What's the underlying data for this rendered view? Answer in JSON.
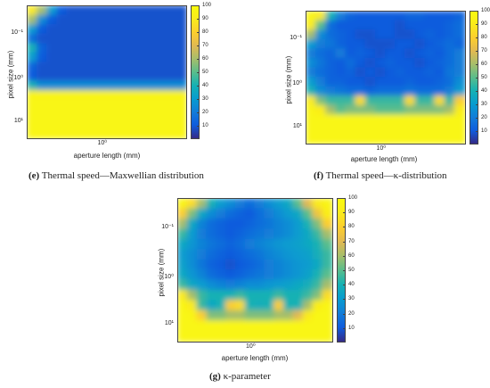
{
  "chart_data": [
    {
      "type": "heatmap",
      "caption_label": "(e)",
      "caption_text": "Thermal speed—Maxwellian distribution",
      "xlabel": "aperture length (mm)",
      "ylabel": "pixel size (mm)",
      "x_tick_labels": [
        "10⁰"
      ],
      "y_tick_labels": [
        "10⁻¹",
        "10⁰",
        "10¹"
      ],
      "colorbar_ticks": [
        "100",
        "90",
        "80",
        "70",
        "60",
        "50",
        "40",
        "30",
        "20",
        "10"
      ],
      "colorbar_range": [
        0,
        100
      ],
      "grid_rows": 14,
      "grid_cols": 16,
      "values": [
        [
          90,
          60,
          30,
          10,
          8,
          8,
          8,
          8,
          8,
          8,
          8,
          8,
          8,
          8,
          8,
          8
        ],
        [
          60,
          25,
          10,
          8,
          8,
          8,
          8,
          8,
          8,
          8,
          8,
          8,
          8,
          8,
          8,
          8
        ],
        [
          30,
          10,
          8,
          8,
          8,
          8,
          8,
          8,
          8,
          8,
          8,
          8,
          8,
          8,
          8,
          8
        ],
        [
          15,
          8,
          8,
          8,
          8,
          8,
          8,
          8,
          8,
          8,
          8,
          8,
          8,
          8,
          8,
          8
        ],
        [
          40,
          12,
          8,
          8,
          8,
          8,
          8,
          8,
          8,
          8,
          8,
          8,
          8,
          8,
          8,
          8
        ],
        [
          30,
          10,
          8,
          8,
          8,
          8,
          8,
          8,
          8,
          8,
          8,
          8,
          8,
          8,
          8,
          8
        ],
        [
          12,
          8,
          8,
          8,
          8,
          8,
          8,
          8,
          8,
          8,
          8,
          8,
          8,
          8,
          8,
          8
        ],
        [
          10,
          8,
          8,
          8,
          8,
          8,
          8,
          8,
          8,
          8,
          8,
          8,
          8,
          8,
          8,
          8
        ],
        [
          40,
          25,
          25,
          25,
          25,
          25,
          25,
          25,
          25,
          25,
          25,
          25,
          25,
          25,
          25,
          25
        ],
        [
          96,
          96,
          96,
          96,
          96,
          96,
          96,
          96,
          96,
          96,
          96,
          96,
          96,
          96,
          96,
          96
        ],
        [
          97,
          97,
          97,
          97,
          97,
          97,
          97,
          97,
          97,
          97,
          97,
          97,
          97,
          97,
          97,
          97
        ],
        [
          97,
          97,
          97,
          97,
          97,
          97,
          97,
          97,
          97,
          97,
          97,
          97,
          97,
          97,
          97,
          97
        ],
        [
          97,
          97,
          97,
          97,
          97,
          97,
          97,
          97,
          97,
          97,
          97,
          97,
          97,
          97,
          97,
          97
        ],
        [
          97,
          97,
          97,
          97,
          97,
          97,
          97,
          97,
          97,
          97,
          97,
          97,
          97,
          97,
          97,
          97
        ]
      ]
    },
    {
      "type": "heatmap",
      "caption_label": "(f)",
      "caption_text": "Thermal speed—κ-distribution",
      "xlabel": "aperture length (mm)",
      "ylabel": "pixel size (mm)",
      "x_tick_labels": [
        "10⁰"
      ],
      "y_tick_labels": [
        "10⁻¹",
        "10⁰",
        "10¹"
      ],
      "colorbar_ticks": [
        "100",
        "90",
        "80",
        "70",
        "60",
        "50",
        "40",
        "30",
        "20",
        "10"
      ],
      "colorbar_range": [
        0,
        100
      ],
      "grid_rows": 14,
      "grid_cols": 16,
      "values": [
        [
          96,
          90,
          40,
          20,
          12,
          10,
          10,
          10,
          10,
          10,
          12,
          12,
          10,
          10,
          10,
          12
        ],
        [
          92,
          50,
          15,
          10,
          10,
          10,
          10,
          10,
          10,
          8,
          10,
          10,
          10,
          10,
          12,
          15
        ],
        [
          60,
          25,
          15,
          12,
          10,
          8,
          8,
          10,
          10,
          8,
          8,
          10,
          12,
          10,
          12,
          15
        ],
        [
          30,
          20,
          18,
          12,
          10,
          10,
          8,
          8,
          8,
          10,
          10,
          8,
          10,
          12,
          15,
          12
        ],
        [
          20,
          15,
          12,
          20,
          10,
          12,
          10,
          8,
          10,
          10,
          8,
          10,
          12,
          10,
          15,
          20
        ],
        [
          25,
          18,
          12,
          10,
          15,
          10,
          8,
          10,
          12,
          10,
          10,
          8,
          10,
          12,
          15,
          20
        ],
        [
          20,
          15,
          12,
          10,
          12,
          8,
          10,
          8,
          10,
          12,
          10,
          10,
          12,
          10,
          18,
          20
        ],
        [
          30,
          20,
          12,
          12,
          10,
          10,
          8,
          10,
          10,
          10,
          12,
          10,
          10,
          12,
          15,
          25
        ],
        [
          40,
          25,
          20,
          18,
          15,
          15,
          12,
          15,
          15,
          15,
          18,
          15,
          15,
          15,
          20,
          30
        ],
        [
          90,
          55,
          45,
          45,
          45,
          85,
          45,
          45,
          45,
          45,
          85,
          45,
          45,
          85,
          45,
          80
        ],
        [
          96,
          92,
          60,
          50,
          55,
          55,
          55,
          50,
          50,
          50,
          55,
          55,
          55,
          55,
          60,
          92
        ],
        [
          97,
          97,
          97,
          97,
          97,
          97,
          97,
          97,
          97,
          97,
          97,
          97,
          97,
          97,
          97,
          97
        ],
        [
          97,
          97,
          97,
          97,
          97,
          97,
          97,
          97,
          97,
          97,
          97,
          97,
          97,
          97,
          97,
          97
        ],
        [
          97,
          97,
          97,
          97,
          97,
          97,
          97,
          97,
          97,
          97,
          97,
          97,
          97,
          97,
          97,
          97
        ]
      ]
    },
    {
      "type": "heatmap",
      "caption_label": "(g)",
      "caption_text": "κ-parameter",
      "xlabel": "aperture length (mm)",
      "ylabel": "pixel size (mm)",
      "x_tick_labels": [
        "10⁰"
      ],
      "y_tick_labels": [
        "10⁻¹",
        "10⁰",
        "10¹"
      ],
      "colorbar_ticks": [
        "100",
        "90",
        "80",
        "70",
        "60",
        "50",
        "40",
        "30",
        "20",
        "10"
      ],
      "colorbar_range": [
        0,
        100
      ],
      "grid_rows": 14,
      "grid_cols": 16,
      "values": [
        [
          96,
          85,
          60,
          40,
          30,
          25,
          20,
          15,
          20,
          25,
          30,
          35,
          50,
          70,
          90,
          96
        ],
        [
          80,
          55,
          35,
          25,
          20,
          15,
          12,
          10,
          15,
          20,
          25,
          30,
          35,
          50,
          75,
          92
        ],
        [
          60,
          35,
          22,
          15,
          12,
          10,
          10,
          12,
          15,
          18,
          22,
          25,
          30,
          40,
          55,
          80
        ],
        [
          45,
          30,
          20,
          15,
          12,
          10,
          12,
          15,
          18,
          20,
          22,
          25,
          30,
          35,
          45,
          60
        ],
        [
          35,
          28,
          22,
          18,
          15,
          12,
          15,
          20,
          22,
          25,
          28,
          30,
          32,
          35,
          40,
          50
        ],
        [
          30,
          25,
          20,
          15,
          12,
          10,
          12,
          15,
          18,
          22,
          25,
          28,
          30,
          32,
          38,
          45
        ],
        [
          32,
          25,
          18,
          12,
          10,
          8,
          10,
          12,
          15,
          20,
          22,
          25,
          28,
          30,
          35,
          45
        ],
        [
          35,
          28,
          22,
          15,
          12,
          10,
          12,
          15,
          18,
          20,
          22,
          25,
          28,
          32,
          40,
          50
        ],
        [
          45,
          35,
          30,
          25,
          22,
          20,
          22,
          25,
          25,
          28,
          30,
          32,
          35,
          38,
          45,
          60
        ],
        [
          90,
          60,
          45,
          40,
          40,
          40,
          45,
          40,
          40,
          40,
          45,
          40,
          40,
          45,
          55,
          85
        ],
        [
          96,
          90,
          45,
          35,
          40,
          80,
          85,
          40,
          38,
          40,
          80,
          40,
          40,
          60,
          92,
          96
        ],
        [
          97,
          96,
          80,
          55,
          55,
          60,
          60,
          55,
          55,
          55,
          60,
          60,
          70,
          90,
          97,
          97
        ],
        [
          97,
          97,
          97,
          97,
          97,
          97,
          97,
          97,
          97,
          97,
          97,
          97,
          97,
          97,
          97,
          97
        ],
        [
          97,
          97,
          97,
          97,
          97,
          97,
          97,
          97,
          97,
          97,
          97,
          97,
          97,
          97,
          97,
          97
        ]
      ]
    }
  ]
}
